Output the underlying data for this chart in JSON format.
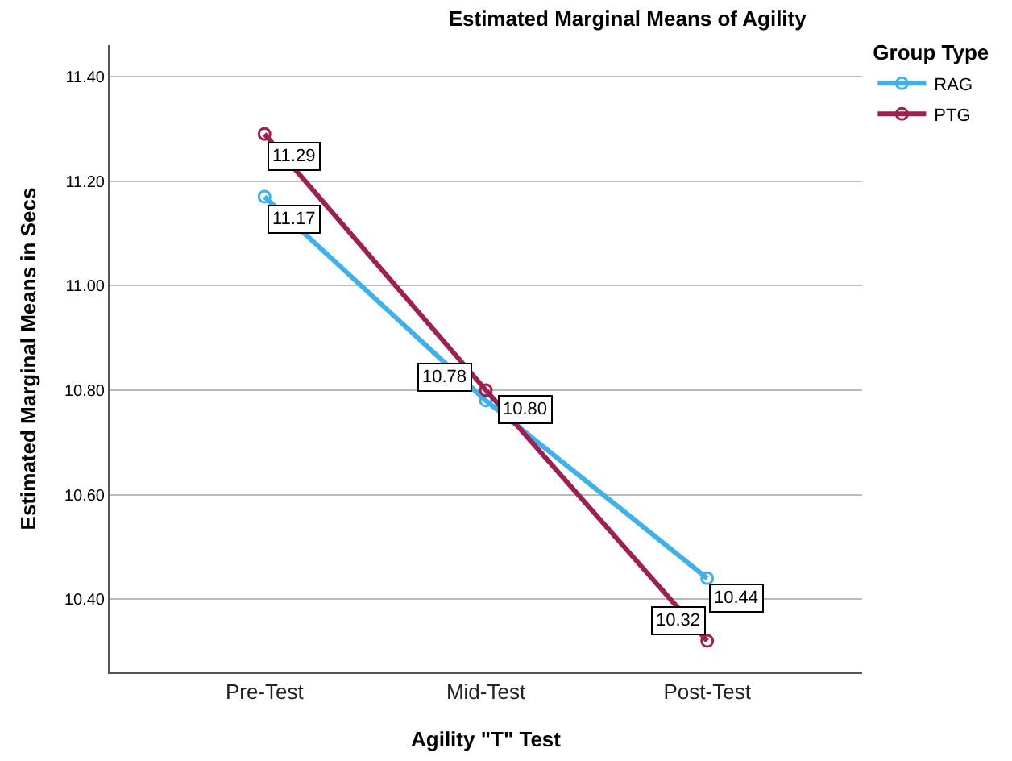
{
  "chart_data": {
    "type": "line",
    "title": "Estimated Marginal Means of Agility",
    "xlabel": "Agility \"T\" Test",
    "ylabel": "Estimated Marginal Means in Secs",
    "legend_title": "Group Type",
    "categories": [
      "Pre-Test",
      "Mid-Test",
      "Post-Test"
    ],
    "series": [
      {
        "name": "RAG",
        "color": "#3eb0ee",
        "values": [
          11.17,
          10.78,
          10.44
        ],
        "value_labels": [
          "11.17",
          "10.78",
          "10.44"
        ]
      },
      {
        "name": "PTG",
        "color": "#9e1f50",
        "values": [
          11.29,
          10.8,
          10.32
        ],
        "value_labels": [
          "11.29",
          "10.80",
          "10.32"
        ]
      }
    ],
    "ylim": [
      10.26,
      11.46
    ],
    "yticks": [
      {
        "value": 10.4,
        "label": "10.40"
      },
      {
        "value": 10.6,
        "label": "10.60"
      },
      {
        "value": 10.8,
        "label": "10.80"
      },
      {
        "value": 11.0,
        "label": "11.00"
      },
      {
        "value": 11.2,
        "label": "11.20"
      },
      {
        "value": 11.4,
        "label": "11.40"
      }
    ],
    "grid": "y",
    "legend": "top right",
    "marker": "circle",
    "line_style": "solid"
  }
}
